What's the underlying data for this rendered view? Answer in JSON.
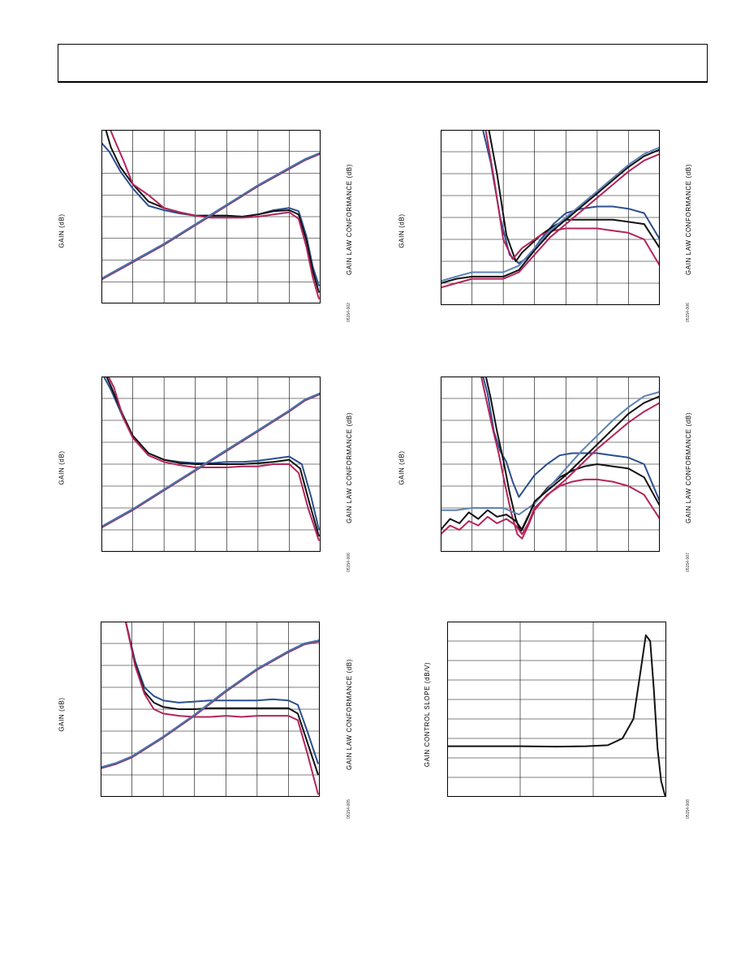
{
  "page": {},
  "chart_data": [
    {
      "id": "plot1",
      "type": "line",
      "ylabel": "GAIN (dB)",
      "y2label": "GAIN LAW CONFORMANCE (dB)",
      "figure_id": "05154-002",
      "grid": true,
      "xlim": [
        0,
        7
      ],
      "ylim": [
        0,
        8
      ],
      "series": [
        {
          "color": "#2b4f8c",
          "x": [
            0,
            0.25,
            0.6,
            1.0,
            1.5,
            2.0,
            2.5,
            3.0,
            3.5,
            4.0,
            4.5,
            5.0,
            5.5,
            6.0,
            6.3,
            6.55,
            6.75,
            6.95
          ],
          "y": [
            7.4,
            7.0,
            6.1,
            5.3,
            4.5,
            4.3,
            4.15,
            4.05,
            4.05,
            4.05,
            4.0,
            4.1,
            4.3,
            4.4,
            4.25,
            3.1,
            1.7,
            0.8
          ]
        },
        {
          "color": "#111111",
          "x": [
            0.1,
            0.3,
            0.6,
            1.0,
            1.5,
            2.0,
            2.5,
            3.0,
            3.5,
            4.0,
            4.5,
            5.0,
            5.5,
            6.0,
            6.3,
            6.55,
            6.75,
            6.95
          ],
          "y": [
            8.2,
            7.2,
            6.3,
            5.5,
            4.7,
            4.4,
            4.2,
            4.05,
            4.05,
            4.05,
            4.0,
            4.1,
            4.25,
            4.3,
            4.1,
            2.9,
            1.5,
            0.5
          ]
        },
        {
          "color": "#b3245a",
          "x": [
            0.2,
            0.4,
            0.7,
            1.0,
            1.5,
            2.0,
            2.5,
            3.0,
            3.5,
            4.0,
            4.5,
            5.0,
            5.5,
            6.0,
            6.3,
            6.55,
            6.75,
            6.95
          ],
          "y": [
            8.3,
            7.6,
            6.6,
            5.5,
            5.0,
            4.4,
            4.2,
            4.05,
            3.95,
            3.95,
            3.95,
            4.0,
            4.1,
            4.2,
            3.9,
            2.6,
            1.2,
            0.2
          ]
        },
        {
          "color": "#8a3a66",
          "x": [
            0,
            1,
            2,
            3,
            4,
            5,
            6,
            6.5,
            7
          ],
          "y": [
            1.1,
            1.9,
            2.7,
            3.6,
            4.5,
            5.4,
            6.2,
            6.6,
            6.9
          ]
        },
        {
          "color": "#4a72aa",
          "x": [
            0,
            1,
            2,
            3,
            4,
            5,
            6,
            6.5,
            7
          ],
          "y": [
            1.15,
            1.95,
            2.75,
            3.65,
            4.55,
            5.45,
            6.25,
            6.65,
            6.95
          ]
        }
      ]
    },
    {
      "id": "plot2",
      "type": "line",
      "ylabel": "GAIN (dB)",
      "y2label": "GAIN LAW CONFORMANCE (dB)",
      "figure_id": "05154-006",
      "grid": true,
      "xlim": [
        0,
        7
      ],
      "ylim": [
        0,
        8
      ],
      "series": [
        {
          "color": "#2b4f8c",
          "x": [
            1.3,
            1.6,
            1.9,
            2.2,
            2.5,
            2.8,
            3.2,
            3.6,
            4.0,
            4.5,
            5.0,
            5.5,
            6.0,
            6.5,
            7.0
          ],
          "y": [
            8.3,
            6.5,
            4.0,
            2.3,
            1.9,
            2.2,
            3.0,
            3.7,
            4.2,
            4.4,
            4.5,
            4.5,
            4.4,
            4.2,
            3.0
          ]
        },
        {
          "color": "#111111",
          "x": [
            1.5,
            1.8,
            2.1,
            2.4,
            2.6,
            2.9,
            3.2,
            3.6,
            4.0,
            4.5,
            5.0,
            5.5,
            6.0,
            6.5,
            7.0
          ],
          "y": [
            8.3,
            6.0,
            3.2,
            2.0,
            2.4,
            2.8,
            3.2,
            3.6,
            3.9,
            3.9,
            3.9,
            3.9,
            3.8,
            3.7,
            2.6
          ]
        },
        {
          "color": "#b3245a",
          "x": [
            1.4,
            1.7,
            2.0,
            2.3,
            2.6,
            2.9,
            3.2,
            3.6,
            4.0,
            4.5,
            5.0,
            5.5,
            6.0,
            6.5,
            7.0
          ],
          "y": [
            8.3,
            5.8,
            3.0,
            2.1,
            2.6,
            2.9,
            3.2,
            3.4,
            3.5,
            3.5,
            3.5,
            3.4,
            3.3,
            3.0,
            1.8
          ]
        },
        {
          "color": "#5d83b5",
          "x": [
            0,
            0.5,
            1.0,
            1.5,
            2.0,
            2.5,
            3.0,
            3.5,
            4.0,
            4.5,
            5.0,
            5.5,
            6.0,
            6.5,
            7.0
          ],
          "y": [
            1.1,
            1.3,
            1.5,
            1.5,
            1.5,
            1.8,
            2.6,
            3.4,
            4.0,
            4.6,
            5.2,
            5.8,
            6.4,
            6.9,
            7.2
          ]
        },
        {
          "color": "#111111",
          "x": [
            0,
            0.5,
            1.0,
            1.5,
            2.0,
            2.5,
            3.0,
            3.5,
            4.0,
            4.5,
            5.0,
            5.5,
            6.0,
            6.5,
            7.0
          ],
          "y": [
            1.0,
            1.2,
            1.3,
            1.3,
            1.3,
            1.6,
            2.5,
            3.3,
            3.9,
            4.5,
            5.1,
            5.7,
            6.3,
            6.8,
            7.1
          ]
        },
        {
          "color": "#b3245a",
          "x": [
            0,
            0.5,
            1.0,
            1.5,
            2.0,
            2.5,
            3.0,
            3.5,
            4.0,
            4.5,
            5.0,
            5.5,
            6.0,
            6.5,
            7.0
          ],
          "y": [
            0.8,
            1.0,
            1.2,
            1.2,
            1.2,
            1.5,
            2.3,
            3.1,
            3.7,
            4.3,
            4.9,
            5.5,
            6.1,
            6.6,
            6.9
          ]
        }
      ]
    },
    {
      "id": "plot3",
      "type": "line",
      "ylabel": "GAIN (dB)",
      "y2label": "GAIN LAW CONFORMANCE (dB)",
      "figure_id": "05154-006",
      "grid": true,
      "xlim": [
        0,
        7
      ],
      "ylim": [
        0,
        8
      ],
      "series": [
        {
          "color": "#2b4f8c",
          "x": [
            0,
            0.3,
            0.7,
            1.0,
            1.5,
            2.0,
            2.5,
            3.0,
            3.5,
            4.0,
            4.5,
            5.0,
            5.5,
            6.0,
            6.4,
            6.7,
            6.95
          ],
          "y": [
            8.2,
            7.4,
            6.1,
            5.3,
            4.5,
            4.2,
            4.1,
            4.05,
            4.05,
            4.1,
            4.1,
            4.15,
            4.25,
            4.35,
            4.0,
            2.5,
            1.0
          ]
        },
        {
          "color": "#111111",
          "x": [
            0.1,
            0.35,
            0.7,
            1.0,
            1.5,
            2.0,
            2.5,
            3.0,
            3.5,
            4.0,
            4.5,
            5.0,
            5.5,
            6.0,
            6.35,
            6.65,
            6.95
          ],
          "y": [
            8.2,
            7.4,
            6.2,
            5.3,
            4.5,
            4.2,
            4.05,
            4.0,
            4.0,
            4.0,
            4.0,
            4.05,
            4.1,
            4.2,
            3.8,
            2.2,
            0.7
          ]
        },
        {
          "color": "#b3245a",
          "x": [
            0.15,
            0.4,
            0.7,
            1.0,
            1.5,
            2.0,
            2.5,
            3.0,
            3.5,
            4.0,
            4.5,
            5.0,
            5.5,
            6.0,
            6.3,
            6.6,
            6.95
          ],
          "y": [
            8.2,
            7.5,
            6.1,
            5.2,
            4.4,
            4.1,
            3.95,
            3.85,
            3.85,
            3.85,
            3.9,
            3.9,
            4.0,
            4.0,
            3.6,
            2.0,
            0.5
          ]
        },
        {
          "color": "#8a3a66",
          "x": [
            0,
            1,
            2,
            3,
            4,
            5,
            6,
            6.5,
            7
          ],
          "y": [
            1.1,
            1.9,
            2.8,
            3.7,
            4.6,
            5.5,
            6.4,
            6.9,
            7.2
          ]
        },
        {
          "color": "#4a72aa",
          "x": [
            0,
            1,
            2,
            3,
            4,
            5,
            6,
            6.5,
            7
          ],
          "y": [
            1.15,
            1.95,
            2.85,
            3.75,
            4.65,
            5.55,
            6.45,
            6.95,
            7.25
          ]
        }
      ]
    },
    {
      "id": "plot4",
      "type": "line",
      "ylabel": "GAIN (dB)",
      "y2label": "GAIN LAW CONFORMANCE (dB)",
      "figure_id": "05154-007",
      "grid": true,
      "xlim": [
        0,
        7
      ],
      "ylim": [
        0,
        8
      ],
      "series": [
        {
          "color": "#2b4f8c",
          "x": [
            1.3,
            1.5,
            1.7,
            1.9,
            2.1,
            2.3,
            2.5,
            2.7,
            3.0,
            3.4,
            3.8,
            4.2,
            4.6,
            5.0,
            5.5,
            6.0,
            6.5,
            7.0
          ],
          "y": [
            8.3,
            7.2,
            5.5,
            4.6,
            4.1,
            3.2,
            2.5,
            2.9,
            3.5,
            4.0,
            4.4,
            4.5,
            4.5,
            4.5,
            4.4,
            4.3,
            4.0,
            2.3
          ]
        },
        {
          "color": "#111111",
          "x": [
            1.4,
            1.6,
            1.8,
            2.0,
            2.2,
            2.4,
            2.55,
            2.75,
            3.0,
            3.4,
            3.8,
            4.2,
            4.6,
            5.0,
            5.5,
            6.0,
            6.5,
            7.0
          ],
          "y": [
            8.3,
            7.0,
            5.5,
            4.2,
            2.7,
            1.5,
            0.9,
            1.5,
            2.2,
            2.9,
            3.4,
            3.7,
            3.9,
            4.0,
            3.9,
            3.8,
            3.4,
            2.1
          ]
        },
        {
          "color": "#b3245a",
          "x": [
            1.25,
            1.45,
            1.65,
            1.85,
            2.05,
            2.25,
            2.45,
            2.6,
            2.8,
            3.0,
            3.4,
            3.8,
            4.2,
            4.6,
            5.0,
            5.5,
            6.0,
            6.5,
            7.0
          ],
          "y": [
            8.3,
            7.0,
            5.7,
            4.5,
            3.1,
            1.8,
            0.8,
            0.6,
            1.2,
            1.9,
            2.6,
            3.0,
            3.2,
            3.3,
            3.3,
            3.2,
            3.0,
            2.6,
            1.5
          ]
        },
        {
          "color": "#5d83b5",
          "x": [
            0,
            0.5,
            1.0,
            1.5,
            2.0,
            2.5,
            3.0,
            3.5,
            4.0,
            4.5,
            5.0,
            5.5,
            6.0,
            6.5,
            7.0
          ],
          "y": [
            1.9,
            1.9,
            2.0,
            2.0,
            2.0,
            1.7,
            2.2,
            3.0,
            3.8,
            4.6,
            5.3,
            6.0,
            6.6,
            7.1,
            7.3
          ]
        },
        {
          "color": "#111111",
          "x": [
            0,
            0.3,
            0.6,
            0.9,
            1.2,
            1.5,
            1.8,
            2.1,
            2.4,
            2.6,
            2.8,
            3.0,
            3.5,
            4.0,
            4.5,
            5.0,
            5.5,
            6.0,
            6.5,
            7.0
          ],
          "y": [
            1.0,
            1.5,
            1.3,
            1.8,
            1.5,
            1.9,
            1.6,
            1.7,
            1.4,
            1.0,
            1.6,
            2.3,
            2.9,
            3.5,
            4.2,
            4.9,
            5.6,
            6.3,
            6.8,
            7.1
          ]
        },
        {
          "color": "#b3245a",
          "x": [
            0,
            0.3,
            0.6,
            0.9,
            1.2,
            1.5,
            1.8,
            2.1,
            2.4,
            2.6,
            2.8,
            3.0,
            3.5,
            4.0,
            4.5,
            5.0,
            5.5,
            6.0,
            6.5,
            7.0
          ],
          "y": [
            0.8,
            1.2,
            1.0,
            1.4,
            1.2,
            1.6,
            1.3,
            1.5,
            1.2,
            0.8,
            1.3,
            2.0,
            2.7,
            3.3,
            4.0,
            4.7,
            5.3,
            5.9,
            6.4,
            6.8
          ]
        }
      ]
    },
    {
      "id": "plot5",
      "type": "line",
      "ylabel": "GAIN (dB)",
      "y2label": "GAIN LAW CONFORMANCE (dB)",
      "figure_id": "05154-005",
      "grid": true,
      "xlim": [
        0,
        7
      ],
      "ylim": [
        0,
        8
      ],
      "series": [
        {
          "color": "#2b4f8c",
          "x": [
            0.8,
            1.1,
            1.4,
            1.7,
            2.0,
            2.5,
            3.0,
            3.5,
            4.0,
            4.5,
            5.0,
            5.5,
            6.0,
            6.3,
            6.6,
            6.95
          ],
          "y": [
            8.0,
            6.2,
            5.0,
            4.6,
            4.4,
            4.3,
            4.35,
            4.4,
            4.4,
            4.4,
            4.4,
            4.45,
            4.4,
            4.2,
            3.0,
            1.5
          ]
        },
        {
          "color": "#111111",
          "x": [
            0.8,
            1.1,
            1.4,
            1.7,
            2.0,
            2.5,
            3.0,
            3.5,
            4.0,
            4.5,
            5.0,
            5.5,
            6.0,
            6.3,
            6.6,
            6.95
          ],
          "y": [
            8.0,
            6.1,
            4.8,
            4.3,
            4.1,
            4.0,
            4.0,
            4.05,
            4.05,
            4.05,
            4.05,
            4.05,
            4.05,
            3.8,
            2.5,
            1.0
          ]
        },
        {
          "color": "#b3245a",
          "x": [
            0.8,
            1.1,
            1.4,
            1.7,
            2.0,
            2.5,
            3.0,
            3.5,
            4.0,
            4.5,
            5.0,
            5.5,
            6.0,
            6.3,
            6.6,
            6.95
          ],
          "y": [
            8.0,
            6.0,
            4.7,
            4.0,
            3.8,
            3.7,
            3.65,
            3.65,
            3.7,
            3.65,
            3.7,
            3.7,
            3.7,
            3.5,
            2.0,
            0.1
          ]
        },
        {
          "color": "#8a3a66",
          "x": [
            0,
            0.5,
            1,
            2,
            3,
            4,
            5,
            6,
            6.5,
            7
          ],
          "y": [
            1.3,
            1.5,
            1.8,
            2.7,
            3.7,
            4.8,
            5.8,
            6.6,
            6.95,
            7.1
          ]
        },
        {
          "color": "#4a72aa",
          "x": [
            0,
            0.5,
            1,
            2,
            3,
            4,
            5,
            6,
            6.5,
            7
          ],
          "y": [
            1.35,
            1.55,
            1.85,
            2.75,
            3.75,
            4.85,
            5.85,
            6.65,
            7.0,
            7.15
          ]
        }
      ]
    },
    {
      "id": "plot6",
      "type": "line",
      "ylabel": "GAIN CONTROL SLOPE (dB/V)",
      "figure_id": "05154-008",
      "grid": true,
      "xlim": [
        0,
        3
      ],
      "ylim": [
        0,
        9
      ],
      "series": [
        {
          "color": "#111111",
          "x": [
            0,
            0.5,
            1.0,
            1.5,
            1.9,
            2.2,
            2.4,
            2.55,
            2.65,
            2.72,
            2.78,
            2.83,
            2.88,
            2.93,
            2.98,
            3.0
          ],
          "y": [
            2.6,
            2.6,
            2.6,
            2.58,
            2.6,
            2.65,
            3.0,
            4.0,
            6.5,
            8.3,
            8.0,
            5.5,
            2.5,
            0.8,
            0.1,
            0.0
          ]
        }
      ]
    }
  ]
}
